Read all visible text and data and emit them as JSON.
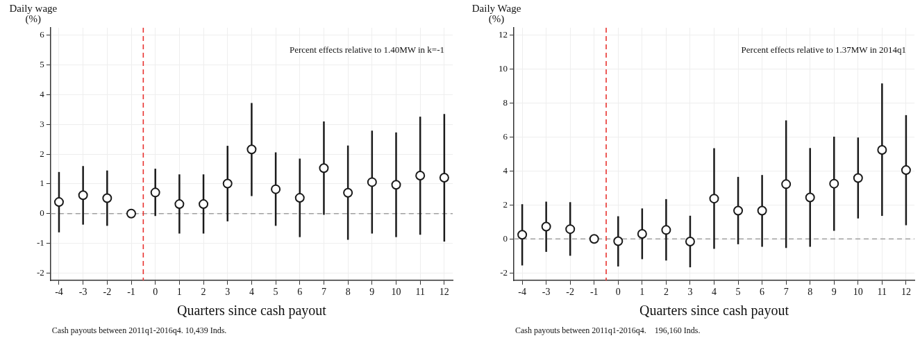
{
  "chart_data": [
    {
      "type": "scatter",
      "ylabel": "Daily wage\n(%)",
      "xlabel": "Quarters since cash payout",
      "annotations": [
        "Percent effects relative to 1.40MW in k=-1",
        "Cash payouts between 2011q1-2016q4. 10,439 Inds."
      ],
      "x": [
        -4,
        -3,
        -2,
        -1,
        0,
        1,
        2,
        3,
        4,
        5,
        6,
        7,
        8,
        9,
        10,
        11,
        12
      ],
      "series": [
        {
          "color": "#1a1a1a",
          "values": [
            0.39,
            0.62,
            0.52,
            0,
            0.71,
            0.32,
            0.32,
            1.01,
            2.16,
            0.82,
            0.53,
            1.53,
            0.7,
            1.06,
            0.97,
            1.28,
            1.21
          ],
          "errors": [
            [
              -0.63,
              1.4
            ],
            [
              -0.37,
              1.6
            ],
            [
              -0.41,
              1.45
            ],
            null,
            [
              -0.08,
              1.51
            ],
            [
              -0.67,
              1.32
            ],
            [
              -0.67,
              1.32
            ],
            [
              -0.26,
              2.28
            ],
            [
              0.59,
              3.72
            ],
            [
              -0.41,
              2.06
            ],
            [
              -0.79,
              1.85
            ],
            [
              -0.04,
              3.1
            ],
            [
              -0.88,
              2.29
            ],
            [
              -0.67,
              2.79
            ],
            [
              -0.79,
              2.73
            ],
            [
              -0.71,
              3.26
            ],
            [
              -0.94,
              3.35
            ]
          ]
        }
      ],
      "xlim": [
        -4.35,
        12.35
      ],
      "xticks": [
        -4,
        -3,
        -2,
        -1,
        0,
        1,
        2,
        3,
        4,
        5,
        6,
        7,
        8,
        9,
        10,
        11,
        12
      ],
      "ylim": [
        -2.25,
        6.25
      ],
      "yticks": [
        -2,
        -1,
        0,
        1,
        2,
        3,
        4,
        5,
        6
      ],
      "ref_lines": [
        {
          "axis": "y",
          "value": 0,
          "color": "#a0a0a0",
          "line_style": "dashed"
        },
        {
          "axis": "x",
          "value": -0.5,
          "color": "#e8322f",
          "line_style": "dashed"
        }
      ],
      "grid": true,
      "legend": false,
      "marker": "circle"
    },
    {
      "type": "scatter",
      "ylabel": "Daily Wage\n(%)",
      "xlabel": "Quarters since cash payout",
      "annotations": [
        "Percent effects relative to 1.37MW in 2014q1",
        "Cash payouts between 2011q1-2016q4.    196,160 Inds."
      ],
      "x": [
        -4,
        -3,
        -2,
        -1,
        0,
        1,
        2,
        3,
        4,
        5,
        6,
        7,
        8,
        9,
        10,
        11,
        12
      ],
      "series": [
        {
          "color": "#1a1a1a",
          "values": [
            0.25,
            0.73,
            0.58,
            0,
            -0.13,
            0.3,
            0.53,
            -0.15,
            2.38,
            1.67,
            1.67,
            3.23,
            2.45,
            3.26,
            3.59,
            5.25,
            4.06
          ],
          "errors": [
            [
              -1.56,
              2.05
            ],
            [
              -0.76,
              2.2
            ],
            [
              -0.99,
              2.17
            ],
            null,
            [
              -1.62,
              1.34
            ],
            [
              -1.19,
              1.8
            ],
            [
              -1.27,
              2.35
            ],
            [
              -1.67,
              1.37
            ],
            [
              -0.58,
              5.35
            ],
            [
              -0.31,
              3.66
            ],
            [
              -0.46,
              3.77
            ],
            [
              -0.53,
              6.99
            ],
            [
              -0.46,
              5.36
            ],
            [
              0.48,
              6.03
            ],
            [
              1.21,
              5.98
            ],
            [
              1.36,
              9.17
            ],
            [
              0.81,
              7.3
            ]
          ]
        }
      ],
      "xlim": [
        -4.35,
        12.35
      ],
      "xticks": [
        -4,
        -3,
        -2,
        -1,
        0,
        1,
        2,
        3,
        4,
        5,
        6,
        7,
        8,
        9,
        10,
        11,
        12
      ],
      "ylim": [
        -2.45,
        12.45
      ],
      "yticks": [
        -2,
        0,
        2,
        4,
        6,
        8,
        10,
        12
      ],
      "ref_lines": [
        {
          "axis": "y",
          "value": 0,
          "color": "#a0a0a0",
          "line_style": "dashed"
        },
        {
          "axis": "x",
          "value": -0.5,
          "color": "#e8322f",
          "line_style": "dashed"
        }
      ],
      "grid": true,
      "legend": false,
      "marker": "circle"
    }
  ]
}
